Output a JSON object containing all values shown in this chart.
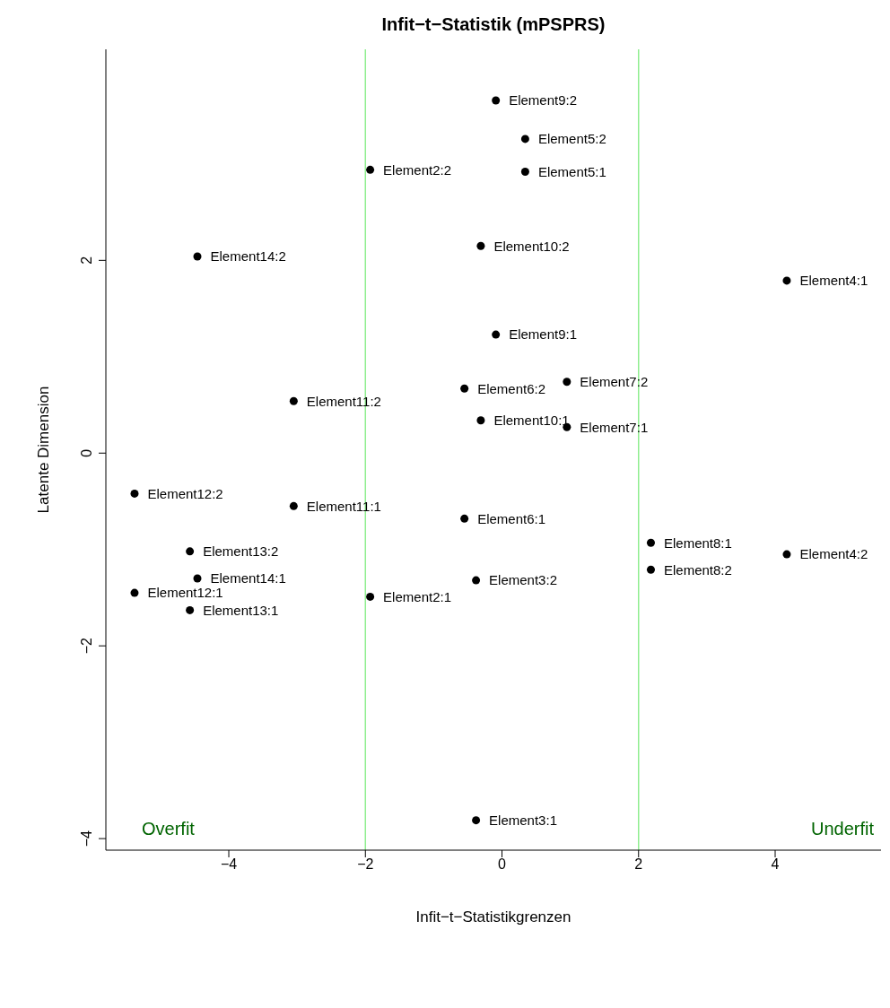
{
  "chart_data": {
    "type": "scatter",
    "title": "Infit−t−Statistik (mPSPRS)",
    "xlabel": "Infit−t−Statistikgrenzen",
    "ylabel": "Latente Dimension",
    "xlim": [
      -5.8,
      5.55
    ],
    "ylim": [
      -4.12,
      4.19
    ],
    "xticks": [
      -4,
      -2,
      0,
      2,
      4
    ],
    "yticks": [
      -4,
      -2,
      0,
      2
    ],
    "grid": false,
    "legend": false,
    "marker": "circle",
    "ref_lines": [
      {
        "axis": "x",
        "value": -2,
        "color": "#90ee90"
      },
      {
        "axis": "x",
        "value": 2,
        "color": "#90ee90"
      }
    ],
    "annotations": [
      "Overfit",
      "Underfit"
    ],
    "series": [
      {
        "name": "Element9:2",
        "color": "#000000",
        "x": [
          -0.09
        ],
        "values": [
          3.66
        ]
      },
      {
        "name": "Element5:2",
        "color": "#000000",
        "x": [
          0.34
        ],
        "values": [
          3.26
        ]
      },
      {
        "name": "Element5:1",
        "color": "#000000",
        "x": [
          0.34
        ],
        "values": [
          2.92
        ]
      },
      {
        "name": "Element2:2",
        "color": "#000000",
        "x": [
          -1.93
        ],
        "values": [
          2.94
        ]
      },
      {
        "name": "Element10:2",
        "color": "#000000",
        "x": [
          -0.31
        ],
        "values": [
          2.15
        ]
      },
      {
        "name": "Element14:2",
        "color": "#000000",
        "x": [
          -4.46
        ],
        "values": [
          2.04
        ]
      },
      {
        "name": "Element4:1",
        "color": "#000000",
        "x": [
          4.17
        ],
        "values": [
          1.79
        ]
      },
      {
        "name": "Element9:1",
        "color": "#000000",
        "x": [
          -0.09
        ],
        "values": [
          1.23
        ]
      },
      {
        "name": "Element7:2",
        "color": "#000000",
        "x": [
          0.95
        ],
        "values": [
          0.74
        ]
      },
      {
        "name": "Element6:2",
        "color": "#000000",
        "x": [
          -0.55
        ],
        "values": [
          0.67
        ]
      },
      {
        "name": "Element11:2",
        "color": "#000000",
        "x": [
          -3.05
        ],
        "values": [
          0.54
        ]
      },
      {
        "name": "Element10:1",
        "color": "#000000",
        "x": [
          -0.31
        ],
        "values": [
          0.34
        ]
      },
      {
        "name": "Element7:1",
        "color": "#000000",
        "x": [
          0.95
        ],
        "values": [
          0.27
        ]
      },
      {
        "name": "Element12:2",
        "color": "#000000",
        "x": [
          -5.38
        ],
        "values": [
          -0.42
        ]
      },
      {
        "name": "Element11:1",
        "color": "#000000",
        "x": [
          -3.05
        ],
        "values": [
          -0.55
        ]
      },
      {
        "name": "Element6:1",
        "color": "#000000",
        "x": [
          -0.55
        ],
        "values": [
          -0.68
        ]
      },
      {
        "name": "Element8:1",
        "color": "#000000",
        "x": [
          2.18
        ],
        "values": [
          -0.93
        ]
      },
      {
        "name": "Element13:2",
        "color": "#000000",
        "x": [
          -4.57
        ],
        "values": [
          -1.02
        ]
      },
      {
        "name": "Element4:2",
        "color": "#000000",
        "x": [
          4.17
        ],
        "values": [
          -1.05
        ]
      },
      {
        "name": "Element14:1",
        "color": "#000000",
        "x": [
          -4.46
        ],
        "values": [
          -1.3
        ]
      },
      {
        "name": "Element3:2",
        "color": "#000000",
        "x": [
          -0.38
        ],
        "values": [
          -1.32
        ]
      },
      {
        "name": "Element8:2",
        "color": "#000000",
        "x": [
          2.18
        ],
        "values": [
          -1.21
        ]
      },
      {
        "name": "Element12:1",
        "color": "#000000",
        "x": [
          -5.38
        ],
        "values": [
          -1.45
        ]
      },
      {
        "name": "Element2:1",
        "color": "#000000",
        "x": [
          -1.93
        ],
        "values": [
          -1.49
        ]
      },
      {
        "name": "Element13:1",
        "color": "#000000",
        "x": [
          -4.57
        ],
        "values": [
          -1.63
        ]
      },
      {
        "name": "Element3:1",
        "color": "#000000",
        "x": [
          -0.38
        ],
        "values": [
          -3.81
        ]
      }
    ]
  }
}
